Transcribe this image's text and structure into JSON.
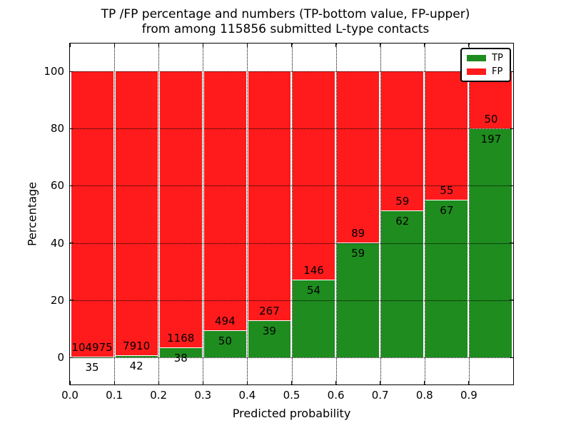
{
  "chart_data": {
    "type": "bar",
    "mode": "stacked-percentage",
    "title": {
      "line1": "TP /FP percentage and numbers (TP-bottom value, FP-upper)",
      "line2": "from among 115856 submitted L-type contacts"
    },
    "xlabel": "Predicted probability",
    "ylabel": "Percentage",
    "total_submitted": 115856,
    "categories": [
      "0.0-0.1",
      "0.1-0.2",
      "0.2-0.3",
      "0.3-0.4",
      "0.4-0.5",
      "0.5-0.6",
      "0.6-0.7",
      "0.7-0.8",
      "0.8-0.9",
      "0.9-1.0"
    ],
    "series": [
      {
        "name": "TP",
        "color": "#1e8c1e",
        "counts": [
          35,
          42,
          38,
          50,
          39,
          54,
          59,
          62,
          67,
          197
        ]
      },
      {
        "name": "FP",
        "color": "#ff1b1b",
        "counts": [
          104975,
          7910,
          1168,
          494,
          267,
          146,
          89,
          59,
          55,
          50
        ]
      }
    ],
    "tp_percent_read": [
      0.03,
      0.53,
      3.15,
      9.19,
      12.75,
      27.0,
      39.86,
      51.24,
      54.92,
      79.76
    ],
    "xticks": [
      "0.0",
      "0.1",
      "0.2",
      "0.3",
      "0.4",
      "0.5",
      "0.6",
      "0.7",
      "0.8",
      "0.9"
    ],
    "yticks": [
      0,
      20,
      40,
      60,
      80,
      100
    ],
    "xlim": [
      0.0,
      1.0
    ],
    "ylim": [
      -10,
      110
    ],
    "grid": "dotted",
    "legend": {
      "position": "upper right",
      "entries": [
        {
          "label": "TP",
          "color": "#1e8c1e"
        },
        {
          "label": "FP",
          "color": "#ff1b1b"
        }
      ]
    }
  }
}
